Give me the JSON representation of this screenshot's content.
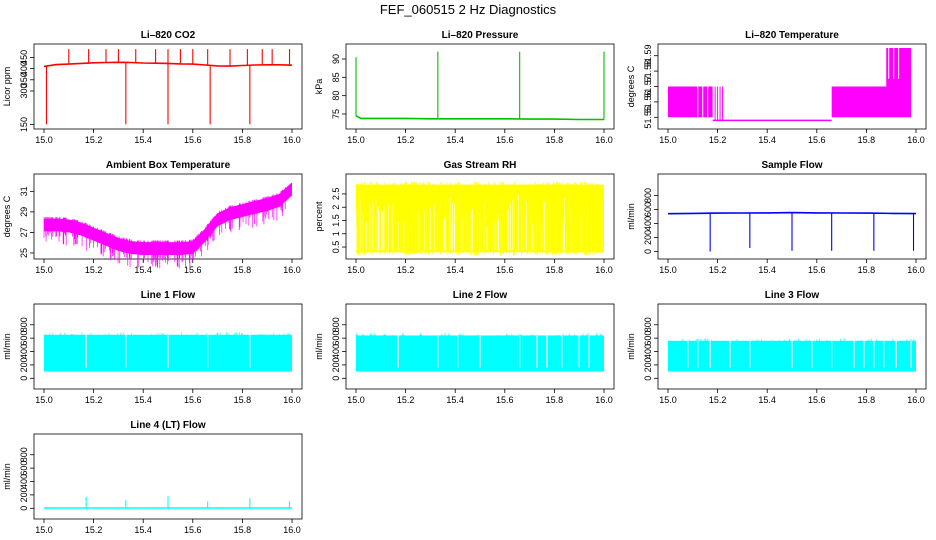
{
  "title": "FEF_060515  2 Hz Diagnostics",
  "chart_data": [
    {
      "type": "line",
      "title": "Li–820 CO2",
      "ylabel": "Licor ppm",
      "color": "#ff0000",
      "xlim": [
        15.0,
        16.0
      ],
      "ylim": [
        148,
        492
      ],
      "x_ticks": [
        "15.0",
        "15.2",
        "15.4",
        "15.6",
        "15.8",
        "16.0"
      ],
      "y_ticks": [
        150,
        300,
        350,
        400,
        450
      ],
      "series": [
        {
          "x": [
            15.0,
            15.05,
            15.1,
            15.15,
            15.2,
            15.25,
            15.3,
            15.35,
            15.4,
            15.45,
            15.5,
            15.55,
            15.6,
            15.65,
            15.7,
            15.75,
            15.8,
            15.85,
            15.9,
            15.95,
            16.0
          ],
          "values": [
            410,
            418,
            420,
            423,
            426,
            427,
            428,
            427,
            425,
            424,
            423,
            421,
            420,
            416,
            412,
            411,
            414,
            416,
            417,
            417,
            415
          ]
        }
      ],
      "spikes_up": [
        15.1,
        15.18,
        15.25,
        15.3,
        15.37,
        15.45,
        15.5,
        15.55,
        15.6,
        15.66,
        15.75,
        15.82,
        15.88,
        15.92,
        15.99
      ],
      "spikes_down": [
        15.01,
        15.33,
        15.67,
        15.5,
        15.83
      ]
    },
    {
      "type": "line",
      "title": "Li–820 Pressure",
      "ylabel": "kPa",
      "color": "#00c000",
      "xlim": [
        15.0,
        16.0
      ],
      "ylim": [
        72,
        93
      ],
      "x_ticks": [
        "15.0",
        "15.2",
        "15.4",
        "15.6",
        "15.8",
        "16.0"
      ],
      "y_ticks": [
        75,
        80,
        85,
        90
      ],
      "series": [
        {
          "x": [
            15.0,
            15.02,
            15.1,
            15.2,
            15.3,
            15.4,
            15.5,
            15.6,
            15.7,
            15.8,
            15.9,
            16.0
          ],
          "values": [
            74.5,
            73.8,
            73.8,
            73.8,
            73.7,
            73.7,
            73.7,
            73.7,
            73.6,
            73.6,
            73.5,
            73.5
          ]
        }
      ],
      "spikes_up": [
        15.0,
        15.33,
        15.66,
        16.0
      ],
      "spike_values": [
        90.5,
        92.0,
        92.0,
        92.0
      ]
    },
    {
      "type": "line",
      "title": "Li–820 Temperature",
      "ylabel": "degrees C",
      "color": "#ff00ff",
      "xlim": [
        15.0,
        16.0
      ],
      "ylim": [
        51.545,
        51.595
      ],
      "x_ticks": [
        "15.0",
        "15.2",
        "15.4",
        "15.6",
        "15.8",
        "16.0"
      ],
      "y_ticks": [
        51.55,
        51.56,
        51.57,
        51.58,
        51.59
      ],
      "levels": [
        51.55,
        51.57,
        51.58,
        51.59
      ],
      "blocks": [
        {
          "x0": 15.0,
          "x1": 15.18,
          "lo": 51.55,
          "hi": 51.57
        },
        {
          "x0": 15.18,
          "x1": 15.66,
          "lo": 51.548,
          "hi": 51.548
        },
        {
          "x0": 15.66,
          "x1": 15.98,
          "lo": 51.55,
          "hi": 51.57
        },
        {
          "x0": 15.88,
          "x1": 15.98,
          "lo": 51.57,
          "hi": 51.595
        }
      ]
    },
    {
      "type": "line",
      "title": "Ambient Box Temperature",
      "ylabel": "degrees C",
      "color": "#ff00ff",
      "xlim": [
        15.0,
        16.0
      ],
      "ylim": [
        24.8,
        32.3
      ],
      "x_ticks": [
        "15.0",
        "15.2",
        "15.4",
        "15.6",
        "15.8",
        "16.0"
      ],
      "y_ticks": [
        25,
        27,
        29,
        31
      ],
      "series": [
        {
          "x": [
            15.0,
            15.05,
            15.1,
            15.15,
            15.2,
            15.25,
            15.3,
            15.35,
            15.4,
            15.45,
            15.5,
            15.55,
            15.6,
            15.65,
            15.7,
            15.75,
            15.8,
            15.85,
            15.9,
            15.95,
            16.0
          ],
          "values": [
            28.3,
            28.3,
            28.2,
            27.9,
            27.4,
            26.9,
            26.4,
            26.1,
            26.0,
            26.0,
            26.0,
            26.0,
            26.1,
            27.3,
            28.8,
            29.4,
            29.7,
            30.0,
            30.3,
            30.7,
            31.8
          ]
        }
      ],
      "noise_below": 1.2
    },
    {
      "type": "line",
      "title": "Gas Stream RH",
      "ylabel": "percent",
      "color": "#ffff00",
      "xlim": [
        15.0,
        16.0
      ],
      "ylim": [
        0.2,
        3.1
      ],
      "x_ticks": [
        "15.0",
        "15.2",
        "15.4",
        "15.6",
        "15.8",
        "16.0"
      ],
      "y_ticks": [
        0.5,
        1.0,
        1.5,
        2.0,
        2.5
      ],
      "band": {
        "lo": 0.3,
        "hi": 2.85
      }
    },
    {
      "type": "line",
      "title": "Sample Flow",
      "ylabel": "ml/min",
      "color": "#0000ff",
      "xlim": [
        15.0,
        16.0
      ],
      "ylim": [
        -50,
        1050
      ],
      "x_ticks": [
        "15.0",
        "15.2",
        "15.4",
        "15.6",
        "15.8",
        "16.0"
      ],
      "y_ticks": [
        0,
        200,
        400,
        600,
        800
      ],
      "series": [
        {
          "x": [
            15.0,
            15.1,
            15.2,
            15.3,
            15.4,
            15.5,
            15.6,
            15.7,
            15.8,
            15.9,
            16.0
          ],
          "values": [
            540,
            545,
            548,
            550,
            552,
            555,
            552,
            550,
            548,
            545,
            542
          ]
        }
      ],
      "spikes_down": [
        15.17,
        15.33,
        15.5,
        15.66,
        15.83,
        15.99
      ],
      "spike_values": [
        0,
        50,
        10,
        10,
        10,
        10
      ]
    },
    {
      "type": "line",
      "title": "Line 1 Flow",
      "ylabel": "ml/min",
      "color": "#00ffff",
      "xlim": [
        15.0,
        16.0
      ],
      "ylim": [
        -100,
        1050
      ],
      "x_ticks": [
        "15.0",
        "15.2",
        "15.4",
        "15.6",
        "15.8",
        "16.0"
      ],
      "y_ticks": [
        0,
        200,
        400,
        600,
        800
      ],
      "band": {
        "lo": 100,
        "hi": 650
      },
      "gaps": [
        15.17,
        15.33,
        15.5,
        15.66,
        15.83
      ]
    },
    {
      "type": "line",
      "title": "Line 2 Flow",
      "ylabel": "ml/min",
      "color": "#00ffff",
      "xlim": [
        15.0,
        16.0
      ],
      "ylim": [
        -100,
        1050
      ],
      "x_ticks": [
        "15.0",
        "15.2",
        "15.4",
        "15.6",
        "15.8",
        "16.0"
      ],
      "y_ticks": [
        0,
        200,
        400,
        600,
        800
      ],
      "band": {
        "lo": 100,
        "hi": 640
      },
      "gaps": [
        15.17,
        15.33,
        15.41,
        15.5,
        15.66,
        15.73,
        15.77,
        15.83,
        15.9,
        15.94
      ]
    },
    {
      "type": "line",
      "title": "Line 3 Flow",
      "ylabel": "ml/min",
      "color": "#00ffff",
      "xlim": [
        15.0,
        16.0
      ],
      "ylim": [
        -100,
        1050
      ],
      "x_ticks": [
        "15.0",
        "15.2",
        "15.4",
        "15.6",
        "15.8",
        "16.0"
      ],
      "y_ticks": [
        0,
        200,
        400,
        600,
        800
      ],
      "band": {
        "lo": 100,
        "hi": 560
      },
      "gaps": [
        15.08,
        15.12,
        15.17,
        15.25,
        15.33,
        15.5,
        15.58,
        15.66,
        15.75,
        15.79,
        15.83,
        15.87,
        15.92,
        15.98
      ]
    },
    {
      "type": "line",
      "title": "Line 4 (LT) Flow",
      "ylabel": "ml/min",
      "color": "#00ffff",
      "xlim": [
        15.0,
        16.0
      ],
      "ylim": [
        -100,
        1050
      ],
      "x_ticks": [
        "15.0",
        "15.2",
        "15.4",
        "15.6",
        "15.8",
        "16.0"
      ],
      "y_ticks": [
        0,
        200,
        400,
        600,
        800
      ],
      "series": [
        {
          "x": [
            15.0,
            16.0
          ],
          "values": [
            5,
            5
          ]
        }
      ],
      "spikes_up": [
        15.17,
        15.33,
        15.5,
        15.66,
        15.83,
        15.99
      ],
      "spike_values": [
        170,
        120,
        180,
        100,
        150,
        110
      ]
    }
  ]
}
